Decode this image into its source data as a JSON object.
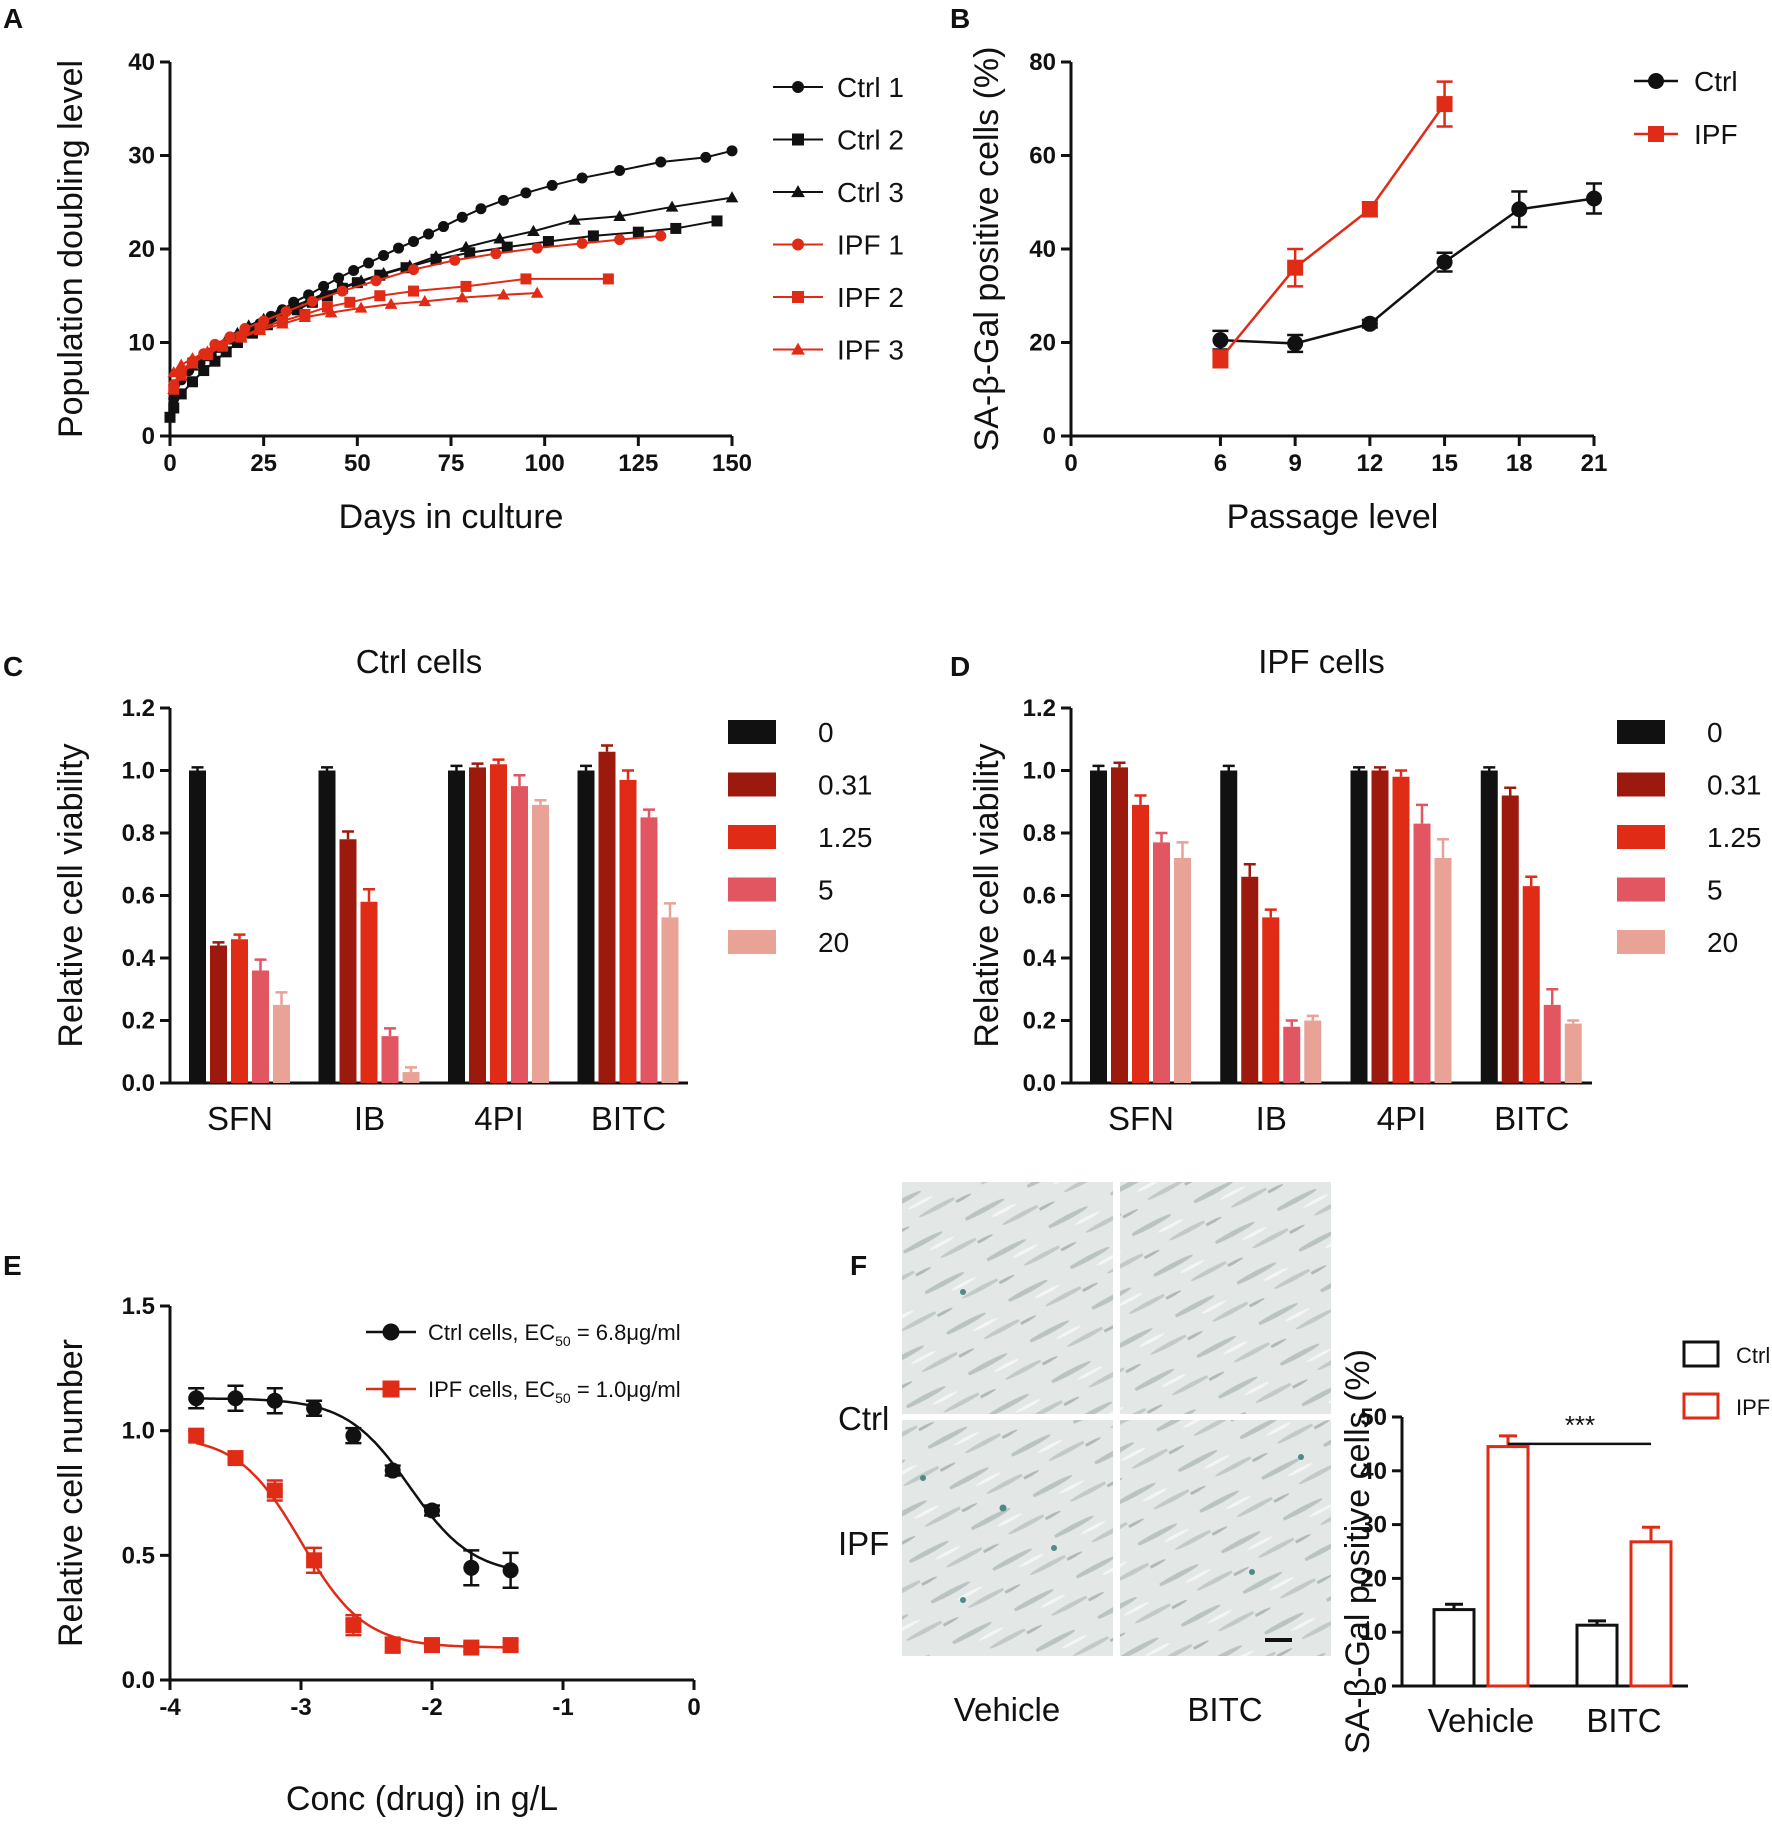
{
  "colors": {
    "black": "#111111",
    "red": "#e02b16",
    "dark_red": "#9b1a0d",
    "pink": "#e25662",
    "light_pink": "#e8a296"
  },
  "panels": {
    "A": {
      "letter": "A"
    },
    "B": {
      "letter": "B"
    },
    "C": {
      "letter": "C"
    },
    "D": {
      "letter": "D"
    },
    "E": {
      "letter": "E"
    },
    "F": {
      "letter": "F"
    }
  },
  "chart_data": [
    {
      "id": "A",
      "type": "line",
      "xlabel": "Days in culture",
      "ylabel": "Population doubling level",
      "xlim": [
        0,
        150
      ],
      "ylim": [
        0,
        40
      ],
      "xticks": [
        0,
        25,
        50,
        75,
        100,
        125,
        150
      ],
      "yticks": [
        0,
        10,
        20,
        30,
        40
      ],
      "legend_position": "right",
      "series": [
        {
          "name": "Ctrl 1",
          "color": "black",
          "marker": "circle",
          "x": [
            1,
            3,
            5,
            8,
            11,
            14,
            17,
            20,
            24,
            27,
            30,
            33,
            37,
            41,
            45,
            49,
            53,
            57,
            61,
            65,
            69,
            73,
            78,
            83,
            89,
            95,
            102,
            110,
            120,
            131,
            143,
            150
          ],
          "y": [
            4,
            6,
            7,
            7.8,
            8.7,
            9.6,
            10.5,
            11.2,
            12,
            12.8,
            13.5,
            14.3,
            15.1,
            16,
            16.9,
            17.7,
            18.5,
            19.3,
            20.1,
            20.8,
            21.6,
            22.4,
            23.4,
            24.3,
            25.2,
            26,
            26.8,
            27.6,
            28.4,
            29.3,
            29.8,
            30.5
          ]
        },
        {
          "name": "Ctrl 2",
          "color": "black",
          "marker": "square",
          "x": [
            0,
            1,
            3,
            6,
            9,
            12,
            15,
            18,
            22,
            26,
            30,
            34,
            38,
            42,
            46,
            50,
            56,
            63,
            71,
            80,
            90,
            101,
            113,
            125,
            135,
            146
          ],
          "y": [
            2,
            3,
            4.5,
            5.8,
            7,
            8,
            9,
            10,
            11,
            11.9,
            12.7,
            13.5,
            14.3,
            15,
            15.8,
            16.4,
            17.2,
            18,
            18.9,
            19.6,
            20.2,
            20.8,
            21.4,
            21.8,
            22.2,
            23
          ]
        },
        {
          "name": "Ctrl 3",
          "color": "black",
          "marker": "triangle",
          "x": [
            1,
            3,
            6,
            9,
            12,
            15,
            18,
            21,
            25,
            29,
            33,
            37,
            41,
            46,
            51,
            57,
            64,
            71,
            79,
            88,
            97,
            108,
            120,
            134,
            150
          ],
          "y": [
            5,
            6.5,
            7.5,
            8.5,
            9.4,
            10.3,
            11,
            11.8,
            12.5,
            13.2,
            13.9,
            14.5,
            15.2,
            15.9,
            16.6,
            17.4,
            18.2,
            19.2,
            20.2,
            21.1,
            21.9,
            23.1,
            23.5,
            24.5,
            25.5
          ]
        },
        {
          "name": "IPF 1",
          "color": "red",
          "marker": "circle",
          "x": [
            1,
            3,
            6,
            9,
            12,
            16,
            20,
            25,
            31,
            38,
            46,
            55,
            65,
            76,
            87,
            98,
            110,
            120,
            131
          ],
          "y": [
            5.5,
            7,
            8,
            8.8,
            9.8,
            10.6,
            11.5,
            12.3,
            13.3,
            14.4,
            15.5,
            16.6,
            17.8,
            18.8,
            19.5,
            20.1,
            20.6,
            21,
            21.4
          ]
        },
        {
          "name": "IPF 2",
          "color": "red",
          "marker": "square",
          "x": [
            1,
            3,
            6,
            10,
            14,
            19,
            24,
            30,
            36,
            42,
            48,
            56,
            65,
            79,
            95,
            117
          ],
          "y": [
            5,
            6.5,
            7.8,
            8.7,
            9.6,
            10.6,
            11.5,
            12.3,
            13,
            13.8,
            14.3,
            15,
            15.5,
            16,
            16.8,
            16.8
          ]
        },
        {
          "name": "IPF 3",
          "color": "red",
          "marker": "triangle",
          "x": [
            1,
            3,
            6,
            10,
            14,
            19,
            24,
            30,
            36,
            43,
            51,
            59,
            68,
            78,
            89,
            98
          ],
          "y": [
            6.8,
            7.6,
            8.3,
            9,
            9.7,
            10.5,
            11.3,
            12,
            12.7,
            13.2,
            13.7,
            14.1,
            14.4,
            14.8,
            15.1,
            15.3
          ]
        }
      ]
    },
    {
      "id": "B",
      "type": "line",
      "xlabel": "Passage level",
      "ylabel": "SA-β-Gal positive cells (%)",
      "xlim": [
        0,
        21
      ],
      "ylim": [
        0,
        80
      ],
      "xticks": [
        0,
        6,
        9,
        12,
        15,
        18,
        21
      ],
      "yticks": [
        0,
        20,
        40,
        60,
        80
      ],
      "legend_position": "top-right",
      "series": [
        {
          "name": "Ctrl",
          "color": "black",
          "marker": "circle",
          "x": [
            6,
            9,
            12,
            15,
            18,
            21
          ],
          "y": [
            20.5,
            19.8,
            24,
            37.2,
            48.5,
            50.8
          ],
          "err": [
            2,
            1.8,
            0.8,
            2,
            3.8,
            3.2
          ]
        },
        {
          "name": "IPF",
          "color": "red",
          "marker": "square",
          "x": [
            6,
            9,
            12,
            15
          ],
          "y": [
            16.5,
            36,
            48.5,
            71
          ],
          "err": [
            1.8,
            4,
            1.5,
            4.8
          ]
        }
      ]
    },
    {
      "id": "C",
      "type": "bar",
      "title": "Ctrl cells",
      "ylabel": "Relative cell viability",
      "ylim": [
        0,
        1.2
      ],
      "yticks": [
        "0.0",
        "0.2",
        "0.4",
        "0.6",
        "0.8",
        "1.0",
        "1.2"
      ],
      "categories": [
        "SFN",
        "IB",
        "4PI",
        "BITC"
      ],
      "legend_position": "right",
      "series": [
        {
          "name": "0",
          "color": "black",
          "values": [
            1.0,
            1.0,
            1.0,
            1.0
          ],
          "err": [
            0.01,
            0.01,
            0.015,
            0.015
          ]
        },
        {
          "name": "0.31",
          "color": "dark_red",
          "values": [
            0.44,
            0.78,
            1.01,
            1.06
          ],
          "err": [
            0.01,
            0.025,
            0.012,
            0.02
          ]
        },
        {
          "name": "1.25",
          "color": "red",
          "values": [
            0.46,
            0.58,
            1.02,
            0.97
          ],
          "err": [
            0.015,
            0.04,
            0.015,
            0.03
          ]
        },
        {
          "name": "5",
          "color": "pink",
          "values": [
            0.36,
            0.15,
            0.95,
            0.85
          ],
          "err": [
            0.035,
            0.025,
            0.035,
            0.025
          ]
        },
        {
          "name": "20",
          "color": "light_pink",
          "values": [
            0.25,
            0.035,
            0.89,
            0.53
          ],
          "err": [
            0.04,
            0.015,
            0.015,
            0.045
          ]
        }
      ]
    },
    {
      "id": "D",
      "type": "bar",
      "title": "IPF cells",
      "ylabel": "Relative cell viability",
      "ylim": [
        0,
        1.2
      ],
      "yticks": [
        "0.0",
        "0.2",
        "0.4",
        "0.6",
        "0.8",
        "1.0",
        "1.2"
      ],
      "categories": [
        "SFN",
        "IB",
        "4PI",
        "BITC"
      ],
      "legend_position": "right",
      "series": [
        {
          "name": "0",
          "color": "black",
          "values": [
            1.0,
            1.0,
            1.0,
            1.0
          ],
          "err": [
            0.015,
            0.015,
            0.01,
            0.01
          ]
        },
        {
          "name": "0.31",
          "color": "dark_red",
          "values": [
            1.01,
            0.66,
            1.0,
            0.92
          ],
          "err": [
            0.015,
            0.04,
            0.01,
            0.025
          ]
        },
        {
          "name": "1.25",
          "color": "red",
          "values": [
            0.89,
            0.53,
            0.98,
            0.63
          ],
          "err": [
            0.03,
            0.025,
            0.02,
            0.03
          ]
        },
        {
          "name": "5",
          "color": "pink",
          "values": [
            0.77,
            0.18,
            0.83,
            0.25
          ],
          "err": [
            0.03,
            0.02,
            0.06,
            0.05
          ]
        },
        {
          "name": "20",
          "color": "light_pink",
          "values": [
            0.72,
            0.2,
            0.72,
            0.19
          ],
          "err": [
            0.05,
            0.015,
            0.06,
            0.01
          ]
        }
      ]
    },
    {
      "id": "E",
      "type": "scatter",
      "xlabel": "Conc (drug) in g/L",
      "ylabel": "Relative cell number",
      "xlim": [
        -4,
        0
      ],
      "ylim": [
        0,
        1.5
      ],
      "xticks": [
        -4,
        -3,
        -2,
        -1,
        0
      ],
      "yticks": [
        "0.0",
        "0.5",
        "1.0",
        "1.5"
      ],
      "legend_position": "top-right",
      "series": [
        {
          "name": "Ctrl cells, EC",
          "name_sub": "50",
          "name_suffix": " = 6.8μg/ml",
          "color": "black",
          "marker": "circle",
          "x": [
            -3.8,
            -3.5,
            -3.2,
            -2.9,
            -2.6,
            -2.3,
            -2.0,
            -1.7,
            -1.4
          ],
          "y": [
            1.13,
            1.13,
            1.12,
            1.09,
            0.98,
            0.84,
            0.68,
            0.45,
            0.44
          ],
          "err": [
            0.04,
            0.05,
            0.05,
            0.03,
            0.03,
            0.02,
            0.02,
            0.07,
            0.07
          ],
          "fit": {
            "top": 1.13,
            "bottom": 0.42,
            "logEC50": -2.17,
            "hill": 1.8
          }
        },
        {
          "name": "IPF cells, EC",
          "name_sub": "50",
          "name_suffix": " = 1.0μg/ml",
          "color": "red",
          "marker": "square",
          "x": [
            -3.8,
            -3.5,
            -3.2,
            -2.9,
            -2.6,
            -2.3,
            -2.0,
            -1.7,
            -1.4
          ],
          "y": [
            0.98,
            0.89,
            0.76,
            0.48,
            0.22,
            0.14,
            0.14,
            0.13,
            0.14
          ],
          "err": [
            0.02,
            0.02,
            0.04,
            0.05,
            0.04,
            0.03,
            0.02,
            0.015,
            0.015
          ],
          "fit": {
            "top": 0.98,
            "bottom": 0.13,
            "logEC50": -3.0,
            "hill": 1.8
          }
        }
      ]
    },
    {
      "id": "F",
      "type": "bar",
      "ylabel": "SA-β-Gal positive cells (%)",
      "ylim": [
        0,
        50
      ],
      "yticks": [
        0,
        10,
        20,
        30,
        40,
        50
      ],
      "categories": [
        "Vehicle",
        "BITC"
      ],
      "annotation": "***",
      "legend_position": "top-right",
      "series": [
        {
          "name": "Ctrl",
          "color": "black",
          "fill": "open",
          "values": [
            14.2,
            11.3
          ],
          "err": [
            1,
            0.8
          ]
        },
        {
          "name": "IPF",
          "color": "red",
          "fill": "open",
          "values": [
            44.5,
            26.8
          ],
          "err": [
            2,
            2.7
          ]
        }
      ]
    }
  ],
  "micrographs": {
    "row_labels": [
      "Ctrl",
      "IPF"
    ],
    "col_labels": [
      "Vehicle",
      "BITC"
    ]
  }
}
